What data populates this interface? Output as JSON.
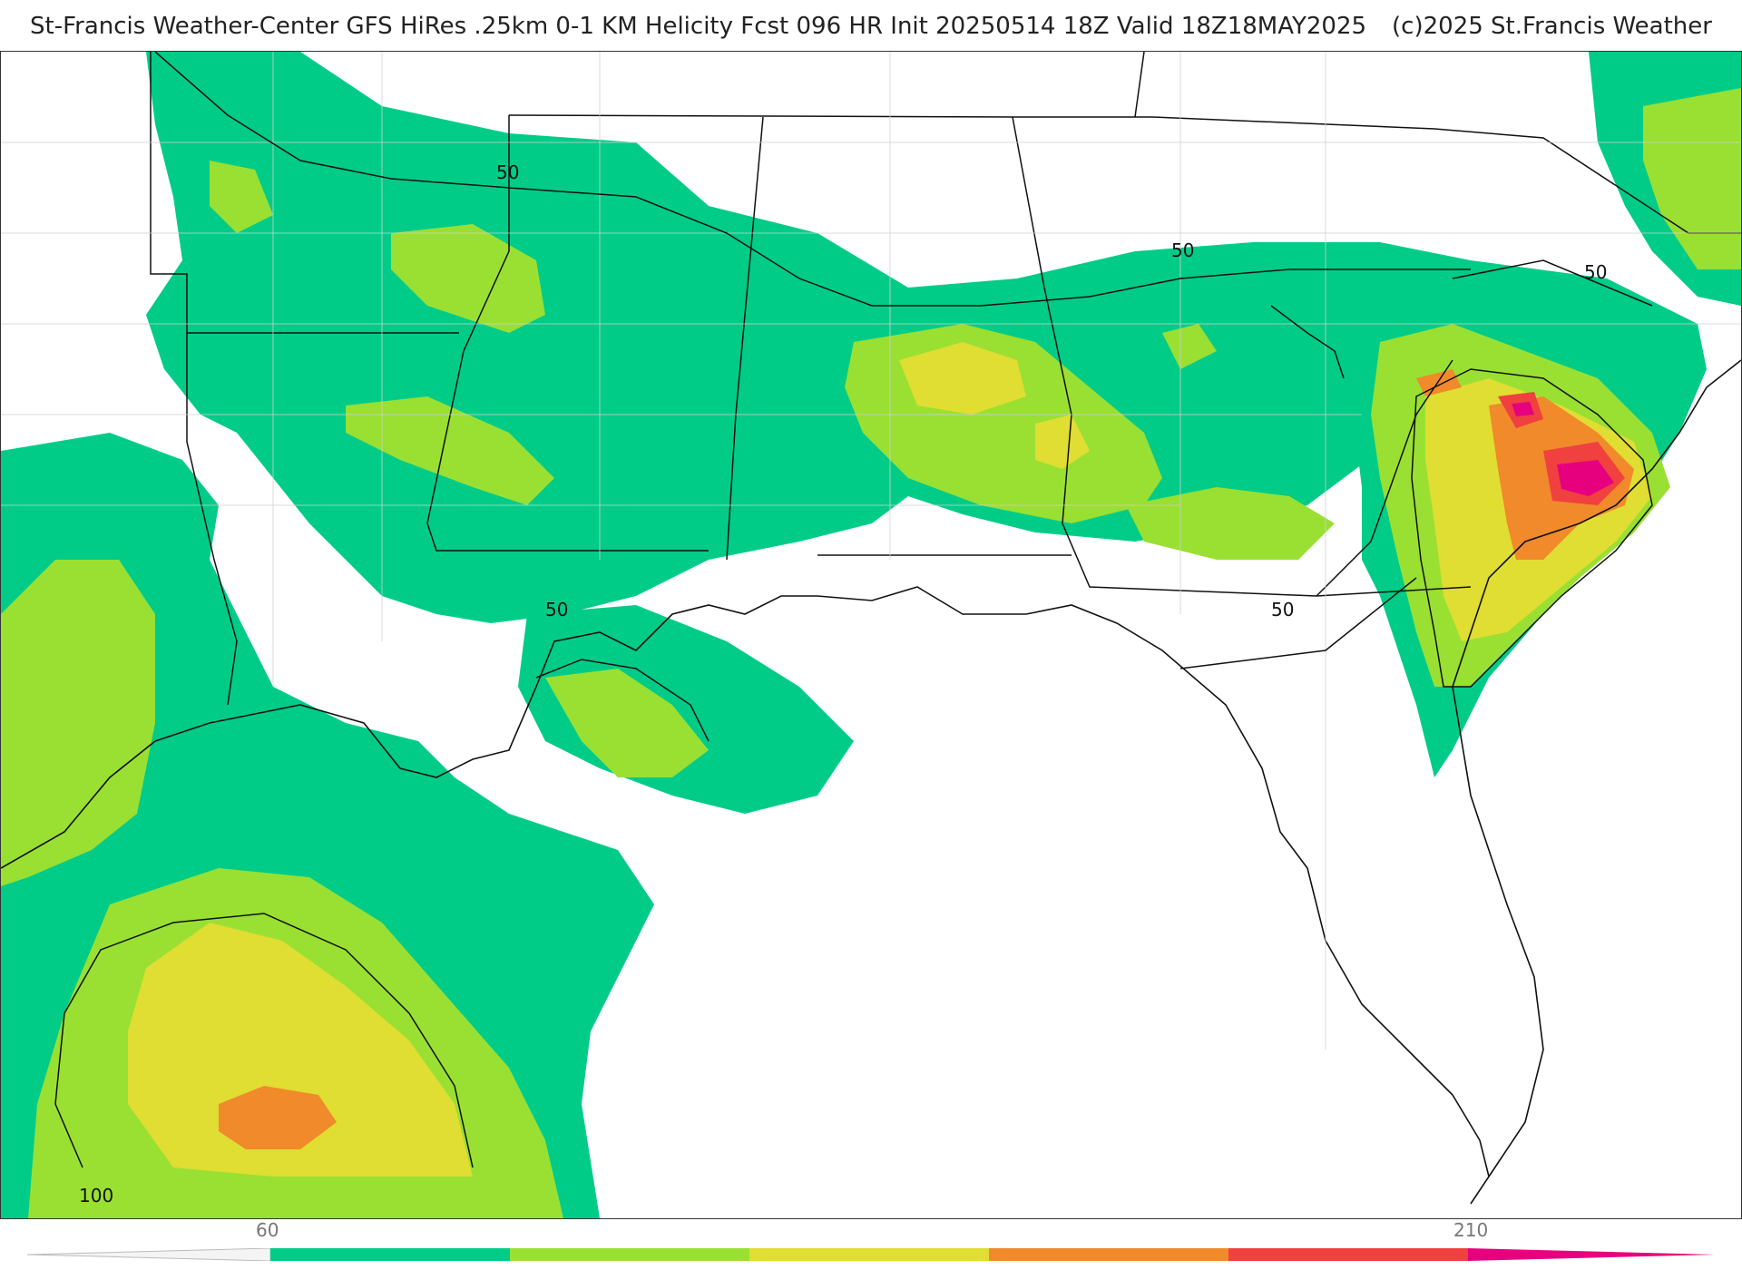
{
  "header": {
    "title": "St-Francis Weather-Center GFS HiRes .25km 0-1 KM Helicity Fcst 096 HR Init 20250514 18Z  Valid 18Z18MAY2025",
    "copyright": "(c)2025 St.Francis Weather"
  },
  "map": {
    "contour_labels": [
      "50",
      "50",
      "50",
      "50",
      "50",
      "100"
    ]
  },
  "colorbar": {
    "tick_labels": [
      "60",
      "210"
    ],
    "colors": [
      "#00cc88",
      "#99e033",
      "#e0dd33",
      "#f08a2a",
      "#f04040",
      "#e6007e"
    ]
  }
}
